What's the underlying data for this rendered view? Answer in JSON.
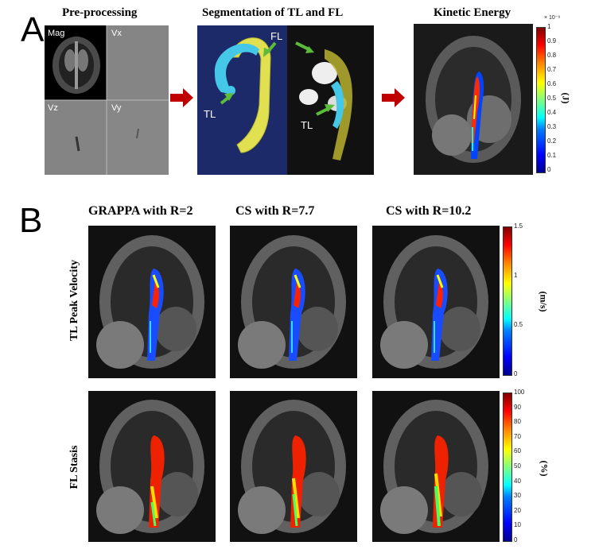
{
  "panel_a": {
    "letter": "A",
    "preprocessing": {
      "title": "Pre-processing",
      "subpanels": [
        "Mag",
        "Vx",
        "Vz",
        "Vy"
      ]
    },
    "segmentation": {
      "title": "Segmentation  of TL and FL",
      "labels": {
        "fl": "FL",
        "tl_left": "TL",
        "tl_right": "TL"
      }
    },
    "kinetic": {
      "title": "Kinetic Energy",
      "colorbar": {
        "exponent": "× 10⁻⁶",
        "unit": "(J)",
        "ticks": [
          "1",
          "0.9",
          "0.8",
          "0.7",
          "0.6",
          "0.5",
          "0.4",
          "0.3",
          "0.2",
          "0.1",
          "0"
        ]
      }
    },
    "arrow_color": "#c00000"
  },
  "panel_b": {
    "letter": "B",
    "columns": [
      "GRAPPA with R=2",
      "CS with R=7.7",
      "CS with R=10.2"
    ],
    "rows": [
      {
        "label": "TL Peak Velocity",
        "colorbar": {
          "unit": "(m/s)",
          "ticks": [
            "1.5",
            "1",
            "0.5",
            "0"
          ]
        }
      },
      {
        "label": "FL Stasis",
        "colorbar": {
          "unit": "(%)",
          "ticks": [
            "100",
            "90",
            "80",
            "70",
            "60",
            "50",
            "40",
            "30",
            "20",
            "10",
            "0"
          ]
        }
      }
    ]
  },
  "colors": {
    "segmentation_bg": "#1c2a6a",
    "true_lumen": "#45c8e8",
    "false_lumen": "#e0e050"
  }
}
